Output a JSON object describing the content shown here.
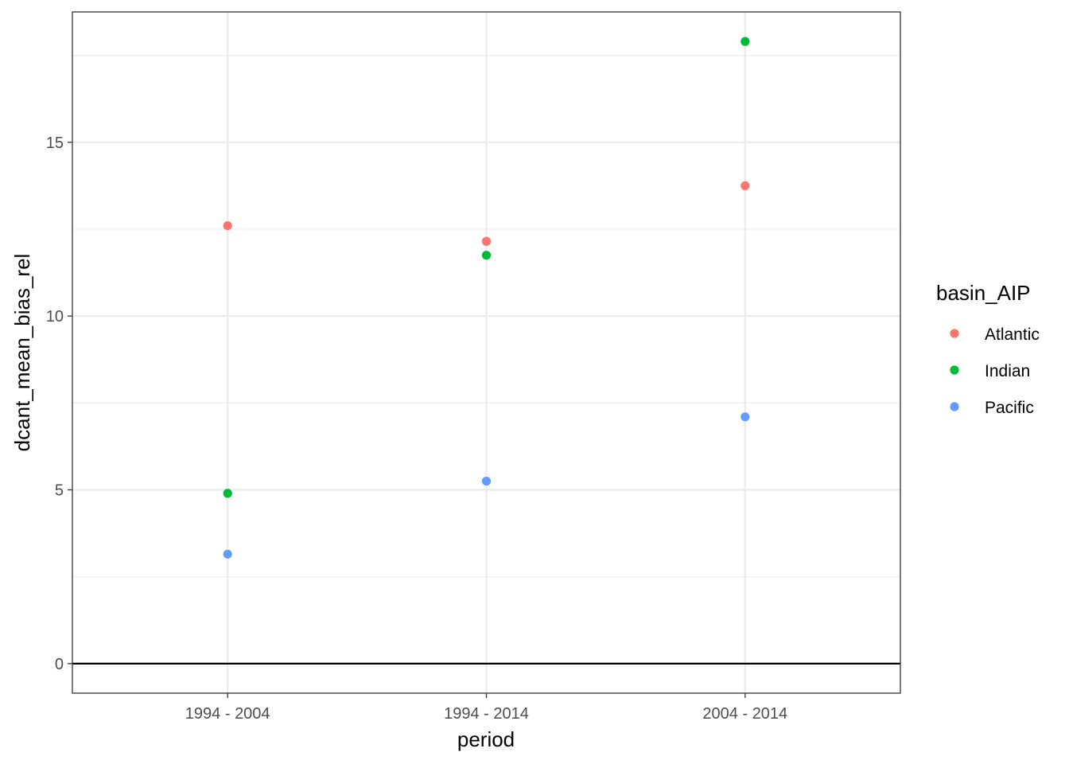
{
  "chart_data": {
    "type": "scatter",
    "title": "",
    "xlabel": "period",
    "ylabel": "dcant_mean_bias_rel",
    "categories": [
      "1994 - 2004",
      "1994 - 2014",
      "2004 - 2014"
    ],
    "ylim": [
      -0.85,
      18.75
    ],
    "y_ticks": [
      0,
      5,
      10,
      15
    ],
    "grid": true,
    "reference_line_y": 0,
    "legend": {
      "title": "basin_AIP",
      "position": "right"
    },
    "series": [
      {
        "name": "Atlantic",
        "color": "#F8766D",
        "values": [
          12.6,
          12.15,
          13.75
        ]
      },
      {
        "name": "Indian",
        "color": "#00BA38",
        "values": [
          4.9,
          11.75,
          17.9
        ]
      },
      {
        "name": "Pacific",
        "color": "#619CFF",
        "values": [
          3.15,
          5.25,
          7.1
        ]
      }
    ]
  }
}
